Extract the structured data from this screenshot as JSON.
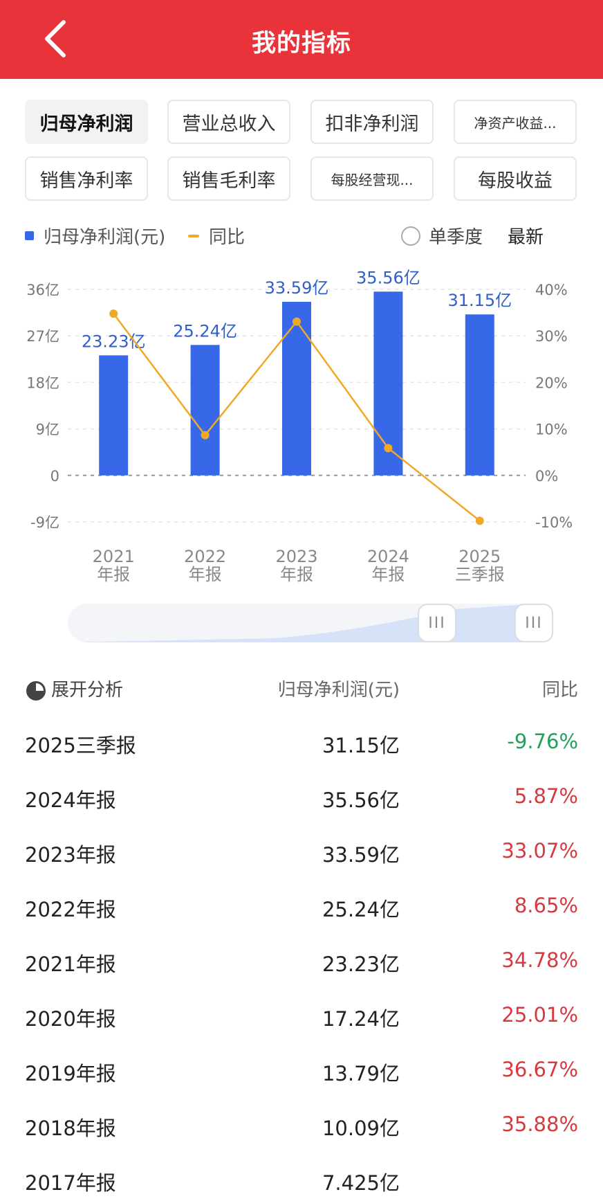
{
  "header": {
    "title": "我的指标"
  },
  "chips": [
    {
      "label": "归母净利润",
      "active": true
    },
    {
      "label": "营业总收入",
      "active": false
    },
    {
      "label": "扣非净利润",
      "active": false
    },
    {
      "label": "净资产收益...",
      "active": false,
      "small": true
    },
    {
      "label": "销售净利率",
      "active": false
    },
    {
      "label": "销售毛利率",
      "active": false
    },
    {
      "label": "每股经营现...",
      "active": false,
      "small": true
    },
    {
      "label": "每股收益",
      "active": false
    }
  ],
  "legend": {
    "bar_label": "归母净利润(元)",
    "line_label": "同比",
    "radio_label": "单季度",
    "latest_label": "最新"
  },
  "colors": {
    "accent": "#e8333a",
    "bar": "#3768e8",
    "line": "#f0a827",
    "up": "#d6393f",
    "down": "#23a05a"
  },
  "chart_data": {
    "type": "bar",
    "categories": [
      "2021年报",
      "2022年报",
      "2023年报",
      "2024年报",
      "2025三季报"
    ],
    "x_tick_lines": [
      [
        "2021",
        "年报"
      ],
      [
        "2022",
        "年报"
      ],
      [
        "2023",
        "年报"
      ],
      [
        "2024",
        "年报"
      ],
      [
        "2025",
        "三季报"
      ]
    ],
    "series": [
      {
        "name": "归母净利润(元)",
        "type": "bar",
        "values": [
          23.23,
          25.24,
          33.59,
          35.56,
          31.15
        ],
        "labels": [
          "23.23亿",
          "25.24亿",
          "33.59亿",
          "35.56亿",
          "31.15亿"
        ],
        "axis": "left"
      },
      {
        "name": "同比",
        "type": "line",
        "values": [
          34.78,
          8.65,
          33.07,
          5.87,
          -9.76
        ],
        "axis": "right"
      }
    ],
    "y_left": {
      "ticks": [
        36,
        27,
        18,
        9,
        0,
        -9
      ],
      "tick_labels": [
        "36亿",
        "27亿",
        "18亿",
        "9亿",
        "0",
        "-9亿"
      ],
      "range": [
        -9,
        36
      ]
    },
    "y_right": {
      "ticks": [
        40,
        30,
        20,
        10,
        0,
        -10
      ],
      "tick_labels": [
        "40%",
        "30%",
        "20%",
        "10%",
        "0%",
        "-10%"
      ],
      "range": [
        -10,
        40
      ]
    },
    "grid": true
  },
  "table": {
    "head": {
      "col1": "展开分析",
      "col2": "归母净利润(元)",
      "col3": "同比"
    },
    "rows": [
      {
        "period": "2025三季报",
        "value": "31.15亿",
        "yoy": "-9.76%",
        "dir": "down"
      },
      {
        "period": "2024年报",
        "value": "35.56亿",
        "yoy": "5.87%",
        "dir": "up"
      },
      {
        "period": "2023年报",
        "value": "33.59亿",
        "yoy": "33.07%",
        "dir": "up"
      },
      {
        "period": "2022年报",
        "value": "25.24亿",
        "yoy": "8.65%",
        "dir": "up"
      },
      {
        "period": "2021年报",
        "value": "23.23亿",
        "yoy": "34.78%",
        "dir": "up"
      },
      {
        "period": "2020年报",
        "value": "17.24亿",
        "yoy": "25.01%",
        "dir": "up"
      },
      {
        "period": "2019年报",
        "value": "13.79亿",
        "yoy": "36.67%",
        "dir": "up"
      },
      {
        "period": "2018年报",
        "value": "10.09亿",
        "yoy": "35.88%",
        "dir": "up"
      },
      {
        "period": "2017年报",
        "value": "7.425亿",
        "yoy": "",
        "dir": "up"
      }
    ]
  },
  "icons": {
    "back": "chevron-left-icon",
    "analysis": "pie-chart-icon",
    "handle": "grip-icon"
  }
}
